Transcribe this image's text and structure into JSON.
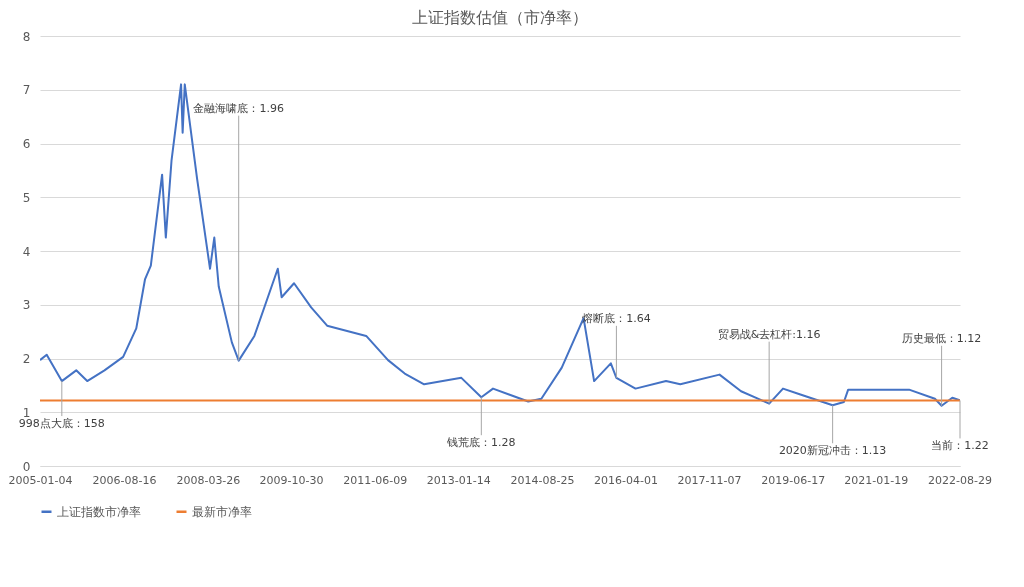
{
  "chart_data": {
    "type": "line",
    "title": "上证指数估值（市净率）",
    "ylim": [
      0,
      8
    ],
    "yticks": [
      0,
      1,
      2,
      3,
      4,
      5,
      6,
      7,
      8
    ],
    "xlim": [
      "2005-01-04",
      "2022-09-02"
    ],
    "xticks": [
      "2005-01-04",
      "2006-08-16",
      "2008-03-26",
      "2009-10-30",
      "2011-06-09",
      "2013-01-14",
      "2014-08-25",
      "2016-04-01",
      "2017-11-07",
      "2019-06-17",
      "2021-01-19",
      "2022-08-29"
    ],
    "grid": "y",
    "legend": "bottom",
    "marker": "none",
    "line_style": "solid",
    "series": [
      {
        "name": "上证指数市净率",
        "color": "#4472c4",
        "x": [
          "2005-01-04",
          "2005-02-20",
          "2005-06-06",
          "2005-09-15",
          "2005-12-01",
          "2006-04-01",
          "2006-08-10",
          "2006-11-10",
          "2007-01-10",
          "2007-02-20",
          "2007-05-10",
          "2007-06-05",
          "2007-07-15",
          "2007-09-20",
          "2007-10-01",
          "2007-10-16",
          "2008-01-10",
          "2008-04-10",
          "2008-05-10",
          "2008-06-10",
          "2008-09-10",
          "2008-10-28",
          "2009-02-15",
          "2009-07-29",
          "2009-08-25",
          "2009-11-20",
          "2010-03-20",
          "2010-07-10",
          "2011-04-10",
          "2011-09-10",
          "2012-01-05",
          "2012-05-20",
          "2013-02-05",
          "2013-06-25",
          "2013-09-15",
          "2014-05-20",
          "2014-08-20",
          "2015-01-10",
          "2015-06-12",
          "2015-08-25",
          "2015-12-20",
          "2016-01-28",
          "2016-06-10",
          "2017-01-10",
          "2017-04-20",
          "2018-01-20",
          "2018-06-20",
          "2018-10-20",
          "2019-01-03",
          "2019-04-10",
          "2019-08-10",
          "2020-03-23",
          "2020-06-10",
          "2020-07-10",
          "2021-03-10",
          "2021-09-10",
          "2022-03-10",
          "2022-04-26",
          "2022-07-10",
          "2022-09-02"
        ],
        "values": [
          1.97,
          2.07,
          1.58,
          1.78,
          1.58,
          1.78,
          2.03,
          2.56,
          3.47,
          3.73,
          5.42,
          4.25,
          5.68,
          7.1,
          6.2,
          7.1,
          5.35,
          3.67,
          4.25,
          3.34,
          2.3,
          1.96,
          2.42,
          3.67,
          3.14,
          3.4,
          2.95,
          2.61,
          2.42,
          1.97,
          1.72,
          1.52,
          1.64,
          1.28,
          1.44,
          1.2,
          1.25,
          1.83,
          2.75,
          1.58,
          1.91,
          1.64,
          1.44,
          1.58,
          1.52,
          1.7,
          1.39,
          1.25,
          1.16,
          1.44,
          1.33,
          1.13,
          1.19,
          1.42,
          1.42,
          1.42,
          1.25,
          1.12,
          1.27,
          1.22
        ]
      },
      {
        "name": "最新市净率",
        "color": "#ed7d31",
        "x": [
          "2005-01-04",
          "2022-09-02"
        ],
        "values": [
          1.22,
          1.22
        ]
      }
    ],
    "annotations": [
      {
        "text": "998点大底：158",
        "x": "2005-06-06",
        "y": 1.58
      },
      {
        "text": "金融海啸底：1.96",
        "x": "2008-10-28",
        "y": 1.96
      },
      {
        "text": "钱荒底：1.28",
        "x": "2013-06-25",
        "y": 1.28
      },
      {
        "text": "熔断底：1.64",
        "x": "2016-01-28",
        "y": 1.64
      },
      {
        "text": "贸易战&去杠杆:1.16",
        "x": "2019-01-03",
        "y": 1.16
      },
      {
        "text": "2020新冠冲击：1.13",
        "x": "2020-03-23",
        "y": 1.13
      },
      {
        "text": "历史最低：1.12",
        "x": "2022-04-26",
        "y": 1.12
      },
      {
        "text": "当前：1.22",
        "x": "2022-09-02",
        "y": 1.22
      }
    ]
  }
}
